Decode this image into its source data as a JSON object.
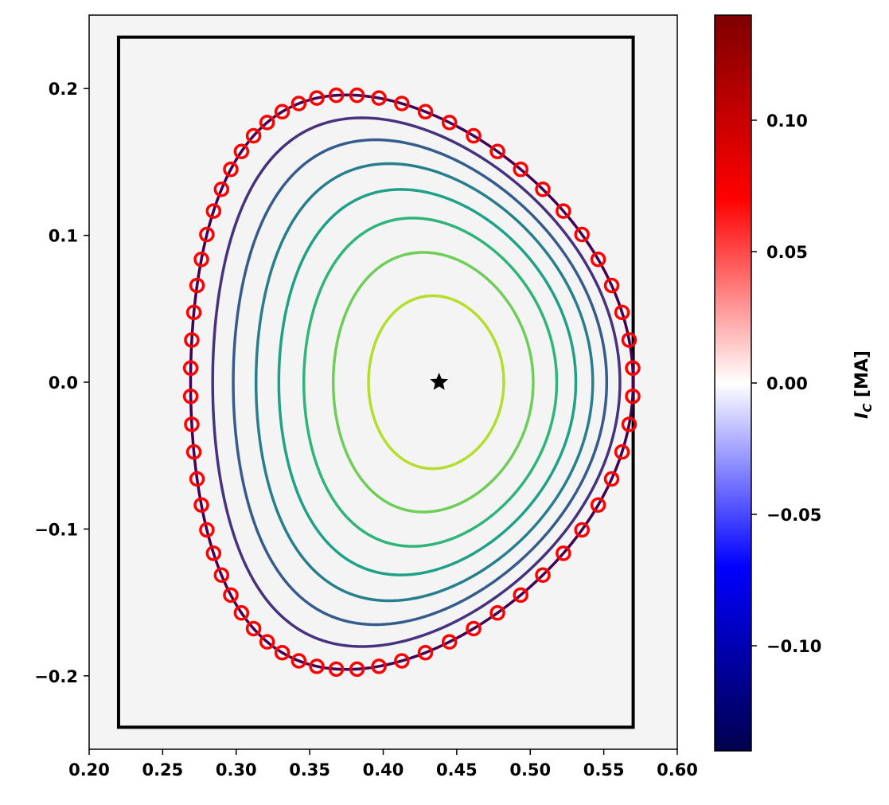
{
  "chart_data": {
    "type": "line",
    "title": "",
    "xlabel": "",
    "ylabel": "",
    "xlim": [
      0.2,
      0.6
    ],
    "ylim": [
      -0.25,
      0.25
    ],
    "x_ticks": [
      0.2,
      0.25,
      0.3,
      0.35,
      0.4,
      0.45,
      0.5,
      0.55,
      0.6
    ],
    "x_tick_labels": [
      "0.20",
      "0.25",
      "0.30",
      "0.35",
      "0.40",
      "0.45",
      "0.50",
      "0.55",
      "0.60"
    ],
    "y_ticks": [
      -0.2,
      -0.1,
      0.0,
      0.1,
      0.2
    ],
    "y_tick_labels": [
      "−0.2",
      "−0.1",
      "0.0",
      "0.1",
      "0.2"
    ],
    "grid": false,
    "background_color": "#f4f4f4",
    "vessel_box": {
      "rmin": 0.22,
      "rmax": 0.57,
      "zmin": -0.235,
      "zmax": 0.235
    },
    "magnetic_axis": {
      "r": 0.438,
      "z": 0.0
    },
    "flux_contours": [
      {
        "rc": 0.4195,
        "a": 0.1505,
        "kappa": 1.3,
        "delta": 0.3,
        "color": "#440154"
      },
      {
        "rc": 0.4225,
        "a": 0.1385,
        "kappa": 1.3,
        "delta": 0.27,
        "color": "#46327e"
      },
      {
        "rc": 0.425,
        "a": 0.127,
        "kappa": 1.3,
        "delta": 0.24,
        "color": "#365c8d"
      },
      {
        "rc": 0.428,
        "a": 0.1145,
        "kappa": 1.3,
        "delta": 0.21,
        "color": "#277f8e"
      },
      {
        "rc": 0.43,
        "a": 0.101,
        "kappa": 1.3,
        "delta": 0.18,
        "color": "#1fa187"
      },
      {
        "rc": 0.432,
        "a": 0.086,
        "kappa": 1.3,
        "delta": 0.14,
        "color": "#2fb47c"
      },
      {
        "rc": 0.434,
        "a": 0.068,
        "kappa": 1.3,
        "delta": 0.1,
        "color": "#6ece58"
      },
      {
        "rc": 0.436,
        "a": 0.046,
        "kappa": 1.28,
        "delta": 0.05,
        "color": "#b5de2b"
      }
    ],
    "coil_ring": {
      "rc": 0.4195,
      "a": 0.1505,
      "kappa": 1.3,
      "delta": 0.3,
      "count": 64,
      "color": "#ff0000"
    },
    "colorbar": {
      "label_base": "I",
      "label_sub": "C",
      "label_unit": " [MA]",
      "vmin": -0.14,
      "vmax": 0.14,
      "ticks": [
        -0.1,
        -0.05,
        0.0,
        0.05,
        0.1
      ],
      "tick_labels": [
        "−0.10",
        "−0.05",
        "0.00",
        "0.05",
        "0.10"
      ],
      "colormap": "seismic",
      "stops": [
        "#00004c",
        "#0000ff",
        "#ffffff",
        "#ff0000",
        "#7f0000"
      ]
    }
  }
}
